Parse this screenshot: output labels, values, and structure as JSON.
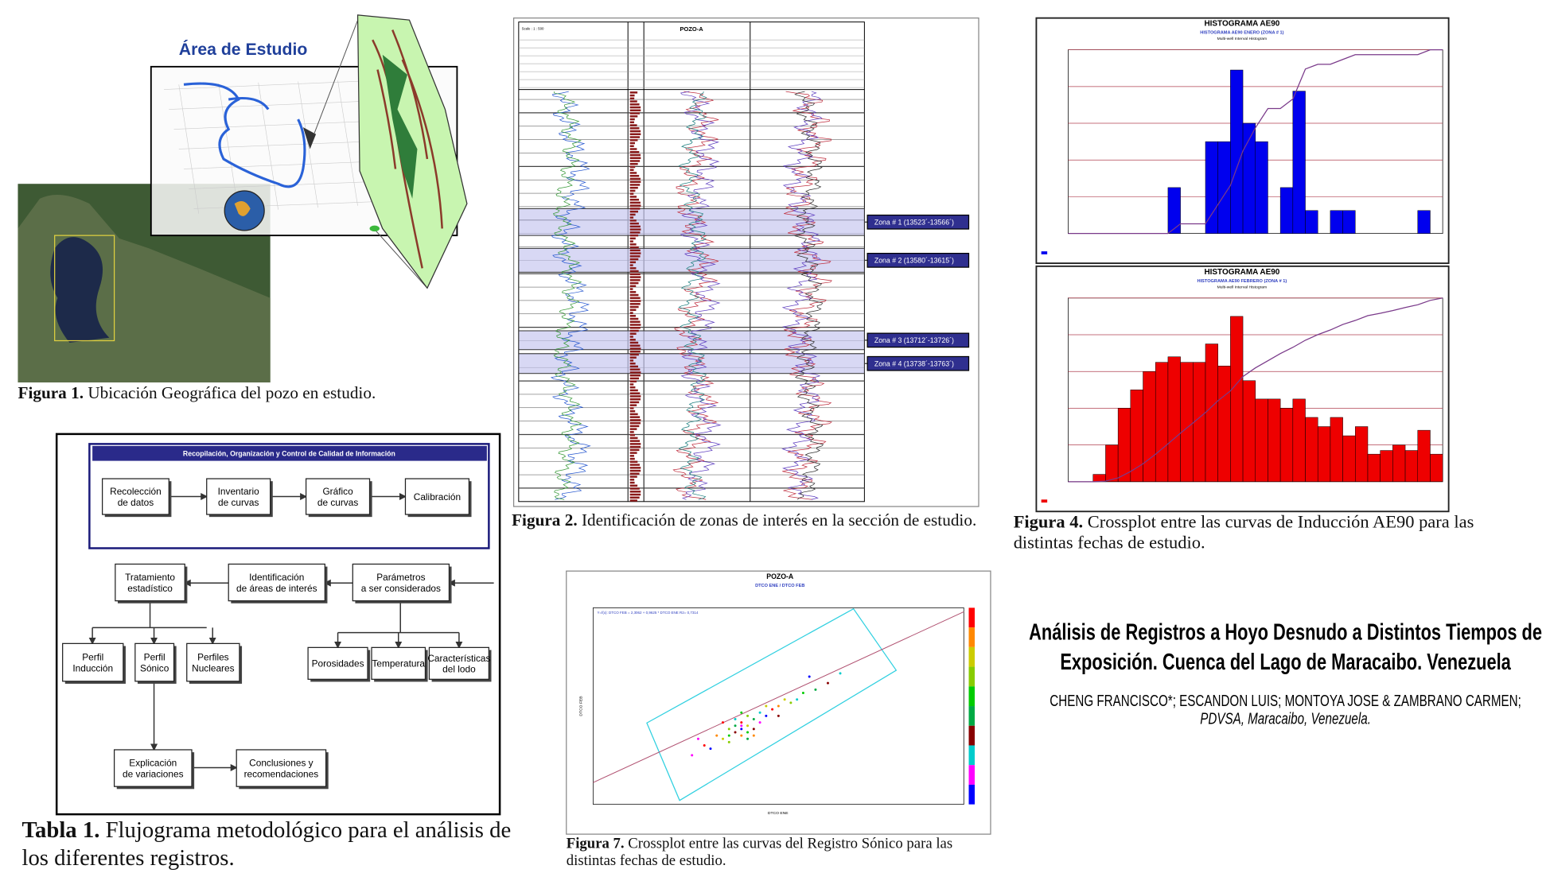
{
  "figure1": {
    "title": "Área de Estudio",
    "caption": {
      "label": "Figura 1.",
      "text": "Ubicación Geográfica del pozo en estudio."
    }
  },
  "figure2": {
    "well": "POZO-A",
    "scale": "Scale : 1 : 500",
    "zones": [
      "Zona # 1 (13523´-13566´)",
      "Zona # 2 (13580´-13615´)",
      "Zona # 3 (13712´-13726´)",
      "Zona # 4 (13738´-13763´)"
    ],
    "caption": {
      "label": "Figura 2.",
      "text": "Identificación de zonas de interés en la sección de estudio."
    }
  },
  "figure4": {
    "histograms": [
      {
        "title": "HISTOGRAMA AE90",
        "subtitle": "HISTOGRAMA AE90 ENERO (ZONA # 1)",
        "note": "Multi-well Interval Histogram",
        "color": "#0000ee",
        "ylim": [
          0,
          20
        ],
        "values": [
          0,
          0,
          0,
          0,
          0,
          0,
          0,
          0,
          5,
          0,
          0,
          10,
          10,
          17.8,
          12,
          10,
          0,
          5,
          15.5,
          2.5,
          0,
          2.5,
          2.5,
          0,
          0,
          0,
          0,
          0,
          2.5,
          0
        ]
      },
      {
        "title": "HISTOGRAMA AE90",
        "subtitle": "HISTOGRAMA AE90 FEBRERO (ZONA # 1)",
        "note": "Multi-well Interval Histogram",
        "color": "#ee0000",
        "ylim": [
          0,
          10
        ],
        "values": [
          0,
          0,
          0.4,
          2,
          4,
          5,
          6,
          6.5,
          6.8,
          6.5,
          6.5,
          7.5,
          6.3,
          9,
          5.5,
          4.5,
          4.5,
          4,
          4.5,
          3.5,
          3,
          3.5,
          2.5,
          3,
          1.5,
          1.7,
          2,
          1.7,
          2.8,
          1.5
        ]
      }
    ],
    "caption": {
      "label": "Figura 4.",
      "text": "Crossplot entre las curvas de Inducción AE90 para las distintas fechas de estudio."
    }
  },
  "table1": {
    "header": "Recopilación, Organización y Control de Calidad de Información",
    "nodes": [
      [
        "Recolección",
        "de datos"
      ],
      [
        "Inventario",
        "de curvas"
      ],
      [
        "Gráfico",
        "de curvas"
      ],
      [
        "Calibración"
      ],
      [
        "Tratamiento",
        "estadístico"
      ],
      [
        "Identificación",
        "de áreas de interés"
      ],
      [
        "Parámetros",
        "a ser considerados"
      ],
      [
        "Perfil",
        "Inducción"
      ],
      [
        "Perfil",
        "Sónico"
      ],
      [
        "Perfiles",
        "Nucleares"
      ],
      [
        "Porosidades"
      ],
      [
        "Temperatura"
      ],
      [
        "Características",
        "del lodo"
      ],
      [
        "Explicación",
        "de variaciones"
      ],
      [
        "Conclusiones y",
        "recomendaciones"
      ]
    ],
    "caption": {
      "label": "Tabla 1.",
      "text": "Flujograma metodológico para el análisis de los diferentes registros."
    }
  },
  "figure7": {
    "title": "POZO-A",
    "subtitle": "DTCO ENE / DTCO FEB",
    "equation": "Y=f(x): DTCO FEB = 2,3062 + 0,9625 * DTCO ENE   R2= 0,7314",
    "x_label": "DTCO ENE",
    "y_label": "DTCO FEB",
    "xlim": [
      40,
      100
    ],
    "ylim": [
      40,
      100
    ],
    "x": [
      58,
      60,
      61,
      62,
      62,
      63,
      63,
      63,
      64,
      64,
      64,
      64,
      65,
      65,
      65,
      66,
      66,
      67,
      67,
      68,
      69,
      70,
      71,
      72,
      74,
      76,
      78,
      80,
      57,
      59,
      61,
      66,
      68,
      62,
      64,
      65,
      70,
      73,
      56,
      75
    ],
    "y": [
      58,
      61,
      60,
      63,
      61,
      64,
      62,
      66,
      64,
      63,
      65,
      61,
      64,
      67,
      62,
      66,
      63,
      68,
      65,
      67,
      69,
      70,
      72,
      71,
      74,
      75,
      77,
      80,
      60,
      57,
      65,
      61,
      70,
      59,
      68,
      60,
      67,
      72,
      55,
      79
    ],
    "caption": {
      "label": "Figura 7.",
      "text": "Crossplot entre las curvas del Registro Sónico para las distintas fechas de estudio."
    }
  },
  "poster": {
    "title": "Análisis de Registros a Hoyo Desnudo a Distintos Tiempos de Exposición. Cuenca del Lago de Maracaibo. Venezuela",
    "authors": "CHENG FRANCISCO*; ESCANDON LUIS; MONTOYA JOSE &  ZAMBRANO CARMEN;",
    "affiliation": "PDVSA, Maracaibo, Venezuela."
  }
}
